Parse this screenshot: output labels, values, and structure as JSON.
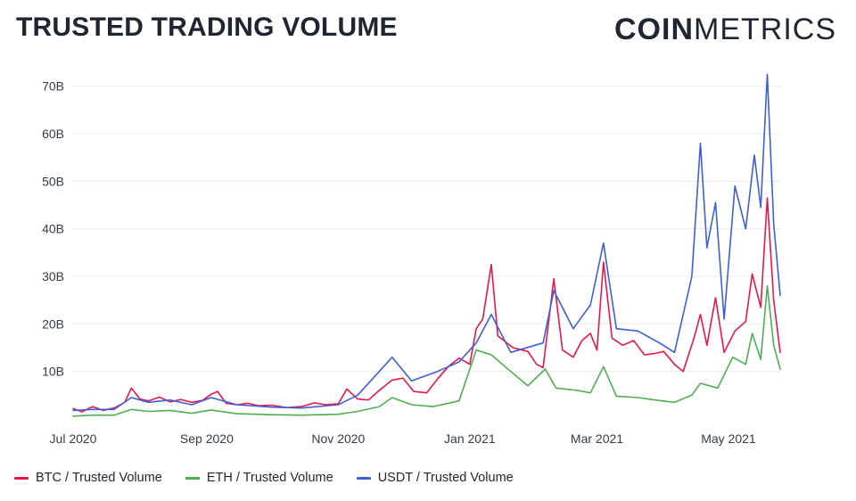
{
  "header": {
    "title": "TRUSTED TRADING VOLUME",
    "logo_strong": "COIN",
    "logo_light": "METRICS"
  },
  "chart_data": {
    "type": "line",
    "title": "TRUSTED TRADING VOLUME",
    "xlabel": "",
    "ylabel": "",
    "y_unit": "USD billions",
    "ylim": [
      0,
      75
    ],
    "y_ticks": [
      10,
      20,
      30,
      40,
      50,
      60,
      70
    ],
    "y_tick_labels": [
      "10B",
      "20B",
      "30B",
      "40B",
      "50B",
      "60B",
      "70B"
    ],
    "x_ticks": [
      "2020-07-01",
      "2020-09-01",
      "2020-11-01",
      "2021-01-01",
      "2021-03-01",
      "2021-05-01"
    ],
    "x_tick_labels": [
      "Jul 2020",
      "Sep 2020",
      "Nov 2020",
      "Jan 2021",
      "Mar 2021",
      "May 2021"
    ],
    "x_range": [
      "2020-07-01",
      "2021-05-25"
    ],
    "grid": "horizontal",
    "legend_position": "bottom-left",
    "series": [
      {
        "name": "BTC / Trusted Volume",
        "color": "#e8174b",
        "points": [
          [
            "2020-07-01",
            2.2
          ],
          [
            "2020-07-05",
            1.5
          ],
          [
            "2020-07-10",
            2.6
          ],
          [
            "2020-07-15",
            1.8
          ],
          [
            "2020-07-20",
            2.3
          ],
          [
            "2020-07-25",
            3.5
          ],
          [
            "2020-07-28",
            6.5
          ],
          [
            "2020-08-01",
            4.2
          ],
          [
            "2020-08-05",
            3.8
          ],
          [
            "2020-08-10",
            4.6
          ],
          [
            "2020-08-15",
            3.6
          ],
          [
            "2020-08-20",
            4.1
          ],
          [
            "2020-08-25",
            3.5
          ],
          [
            "2020-08-30",
            3.9
          ],
          [
            "2020-09-03",
            5.2
          ],
          [
            "2020-09-06",
            5.8
          ],
          [
            "2020-09-10",
            3.3
          ],
          [
            "2020-09-15",
            3.0
          ],
          [
            "2020-09-20",
            3.3
          ],
          [
            "2020-09-25",
            2.8
          ],
          [
            "2020-10-01",
            2.9
          ],
          [
            "2020-10-08",
            2.4
          ],
          [
            "2020-10-15",
            2.6
          ],
          [
            "2020-10-21",
            3.4
          ],
          [
            "2020-10-26",
            3.0
          ],
          [
            "2020-11-01",
            3.2
          ],
          [
            "2020-11-05",
            6.3
          ],
          [
            "2020-11-10",
            4.2
          ],
          [
            "2020-11-15",
            4.0
          ],
          [
            "2020-11-20",
            6.0
          ],
          [
            "2020-11-26",
            8.2
          ],
          [
            "2020-12-01",
            8.6
          ],
          [
            "2020-12-06",
            5.8
          ],
          [
            "2020-12-12",
            5.5
          ],
          [
            "2020-12-17",
            8.4
          ],
          [
            "2020-12-22",
            11.0
          ],
          [
            "2020-12-27",
            12.8
          ],
          [
            "2021-01-01",
            11.5
          ],
          [
            "2021-01-04",
            19.0
          ],
          [
            "2021-01-07",
            21.0
          ],
          [
            "2021-01-11",
            32.5
          ],
          [
            "2021-01-14",
            17.5
          ],
          [
            "2021-01-21",
            15.0
          ],
          [
            "2021-01-28",
            14.2
          ],
          [
            "2021-02-01",
            11.5
          ],
          [
            "2021-02-04",
            10.8
          ],
          [
            "2021-02-09",
            29.5
          ],
          [
            "2021-02-13",
            14.5
          ],
          [
            "2021-02-18",
            13.0
          ],
          [
            "2021-02-22",
            16.5
          ],
          [
            "2021-02-26",
            18.0
          ],
          [
            "2021-03-01",
            14.5
          ],
          [
            "2021-03-04",
            33.0
          ],
          [
            "2021-03-08",
            17.0
          ],
          [
            "2021-03-13",
            15.5
          ],
          [
            "2021-03-18",
            16.5
          ],
          [
            "2021-03-23",
            13.5
          ],
          [
            "2021-03-28",
            13.8
          ],
          [
            "2021-04-01",
            14.2
          ],
          [
            "2021-04-06",
            11.5
          ],
          [
            "2021-04-10",
            10.0
          ],
          [
            "2021-04-15",
            17.0
          ],
          [
            "2021-04-18",
            22.0
          ],
          [
            "2021-04-21",
            15.5
          ],
          [
            "2021-04-25",
            25.5
          ],
          [
            "2021-04-29",
            14.0
          ],
          [
            "2021-05-04",
            18.5
          ],
          [
            "2021-05-09",
            20.5
          ],
          [
            "2021-05-12",
            30.5
          ],
          [
            "2021-05-16",
            23.5
          ],
          [
            "2021-05-19",
            46.5
          ],
          [
            "2021-05-22",
            25.0
          ],
          [
            "2021-05-25",
            14.0
          ]
        ]
      },
      {
        "name": "ETH / Trusted Volume",
        "color": "#4caf50",
        "points": [
          [
            "2020-07-01",
            0.6
          ],
          [
            "2020-07-10",
            0.8
          ],
          [
            "2020-07-20",
            0.8
          ],
          [
            "2020-07-28",
            2.0
          ],
          [
            "2020-08-05",
            1.6
          ],
          [
            "2020-08-15",
            1.8
          ],
          [
            "2020-08-25",
            1.2
          ],
          [
            "2020-09-03",
            1.9
          ],
          [
            "2020-09-15",
            1.1
          ],
          [
            "2020-10-01",
            0.9
          ],
          [
            "2020-10-15",
            0.8
          ],
          [
            "2020-11-01",
            1.0
          ],
          [
            "2020-11-10",
            1.6
          ],
          [
            "2020-11-20",
            2.6
          ],
          [
            "2020-11-26",
            4.5
          ],
          [
            "2020-12-05",
            3.0
          ],
          [
            "2020-12-15",
            2.6
          ],
          [
            "2020-12-27",
            3.8
          ],
          [
            "2021-01-04",
            14.5
          ],
          [
            "2021-01-11",
            13.5
          ],
          [
            "2021-01-20",
            10.0
          ],
          [
            "2021-01-28",
            7.0
          ],
          [
            "2021-02-05",
            10.5
          ],
          [
            "2021-02-10",
            6.5
          ],
          [
            "2021-02-20",
            6.0
          ],
          [
            "2021-02-26",
            5.5
          ],
          [
            "2021-03-04",
            11.0
          ],
          [
            "2021-03-10",
            4.8
          ],
          [
            "2021-03-20",
            4.5
          ],
          [
            "2021-03-28",
            4.0
          ],
          [
            "2021-04-06",
            3.5
          ],
          [
            "2021-04-14",
            5.0
          ],
          [
            "2021-04-18",
            7.5
          ],
          [
            "2021-04-26",
            6.5
          ],
          [
            "2021-05-03",
            13.0
          ],
          [
            "2021-05-09",
            11.5
          ],
          [
            "2021-05-12",
            18.0
          ],
          [
            "2021-05-16",
            12.5
          ],
          [
            "2021-05-19",
            28.0
          ],
          [
            "2021-05-22",
            15.5
          ],
          [
            "2021-05-25",
            10.5
          ]
        ]
      },
      {
        "name": "USDT / Trusted Volume",
        "color": "#3e5fd6",
        "points": [
          [
            "2020-07-01",
            1.8
          ],
          [
            "2020-07-10",
            2.0
          ],
          [
            "2020-07-20",
            2.0
          ],
          [
            "2020-07-28",
            4.5
          ],
          [
            "2020-08-05",
            3.5
          ],
          [
            "2020-08-15",
            4.0
          ],
          [
            "2020-08-25",
            3.0
          ],
          [
            "2020-09-03",
            4.5
          ],
          [
            "2020-09-15",
            3.0
          ],
          [
            "2020-10-01",
            2.5
          ],
          [
            "2020-10-15",
            2.3
          ],
          [
            "2020-11-01",
            3.0
          ],
          [
            "2020-11-10",
            5.0
          ],
          [
            "2020-11-26",
            13.0
          ],
          [
            "2020-12-05",
            8.0
          ],
          [
            "2020-12-17",
            10.0
          ],
          [
            "2020-12-27",
            12.0
          ],
          [
            "2021-01-04",
            16.0
          ],
          [
            "2021-01-11",
            22.0
          ],
          [
            "2021-01-20",
            14.0
          ],
          [
            "2021-02-04",
            16.0
          ],
          [
            "2021-02-09",
            27.0
          ],
          [
            "2021-02-18",
            19.0
          ],
          [
            "2021-02-26",
            24.0
          ],
          [
            "2021-03-04",
            37.0
          ],
          [
            "2021-03-10",
            19.0
          ],
          [
            "2021-03-20",
            18.5
          ],
          [
            "2021-03-30",
            16.0
          ],
          [
            "2021-04-06",
            14.0
          ],
          [
            "2021-04-14",
            30.0
          ],
          [
            "2021-04-18",
            58.0
          ],
          [
            "2021-04-21",
            36.0
          ],
          [
            "2021-04-25",
            45.5
          ],
          [
            "2021-04-29",
            21.0
          ],
          [
            "2021-05-04",
            49.0
          ],
          [
            "2021-05-09",
            40.0
          ],
          [
            "2021-05-13",
            55.5
          ],
          [
            "2021-05-16",
            44.5
          ],
          [
            "2021-05-19",
            72.5
          ],
          [
            "2021-05-22",
            41.0
          ],
          [
            "2021-05-25",
            26.0
          ]
        ]
      }
    ]
  }
}
